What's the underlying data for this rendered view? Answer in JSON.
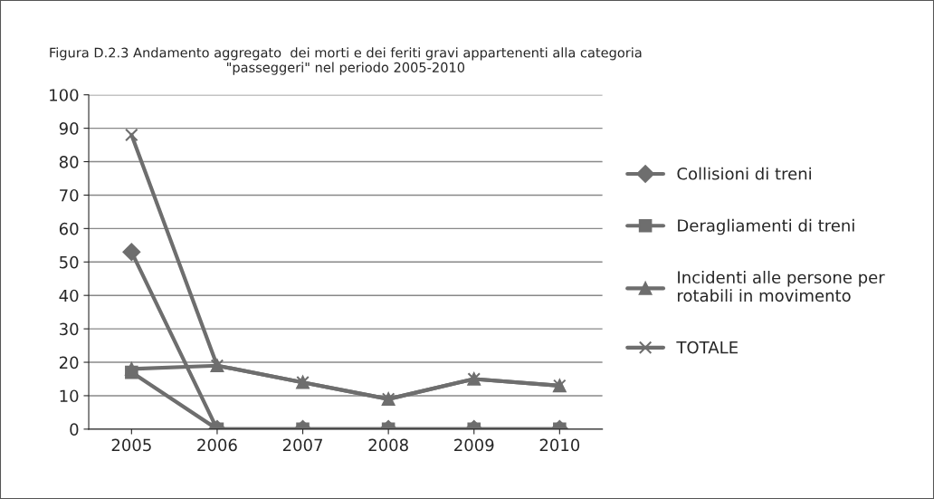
{
  "chart_data": {
    "type": "line",
    "title": "Figura D.2.3 Andamento aggregato  dei morti e dei feriti gravi appartenenti alla categoria\n\"passeggeri\" nel periodo 2005-2010",
    "categories": [
      "2005",
      "2006",
      "2007",
      "2008",
      "2009",
      "2010"
    ],
    "series": [
      {
        "name": "Collisioni di treni",
        "color": "#6e6e6e",
        "marker": "diamond",
        "values": [
          53,
          0,
          0,
          0,
          0,
          0
        ]
      },
      {
        "name": "Deragliamenti di treni",
        "color": "#6e6e6e",
        "marker": "square",
        "values": [
          17,
          0,
          0,
          0,
          0,
          0
        ]
      },
      {
        "name": "Incidenti alle persone per\nrotabili in movimento",
        "color": "#6e6e6e",
        "marker": "triangle",
        "values": [
          18,
          19,
          14,
          9,
          15,
          13
        ]
      },
      {
        "name": "TOTALE",
        "color": "#6e6e6e",
        "marker": "cross",
        "values": [
          88,
          19,
          14,
          9,
          15,
          13
        ]
      }
    ],
    "ylim": [
      0,
      100
    ],
    "yticks": [
      0,
      10,
      20,
      30,
      40,
      50,
      60,
      70,
      80,
      90,
      100
    ],
    "grid": "y",
    "legend": "right",
    "line_style": "solid"
  }
}
